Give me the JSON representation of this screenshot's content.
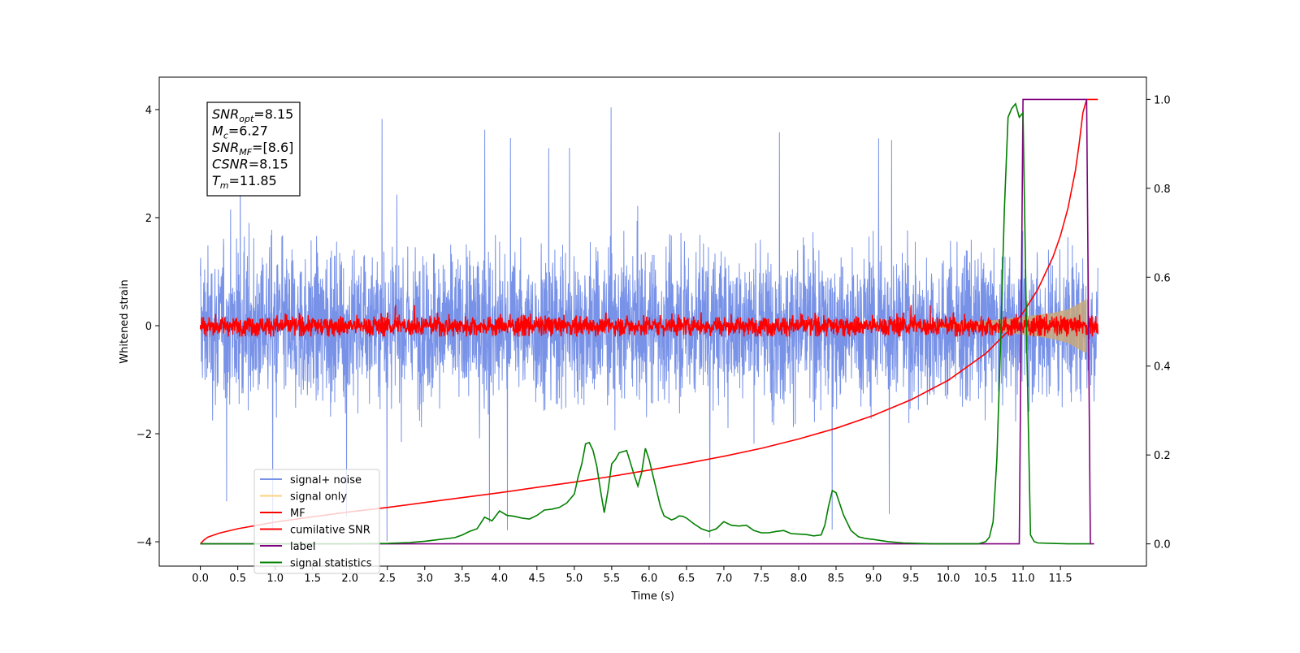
{
  "chart_data": {
    "type": "line",
    "title": "",
    "xlabel": "Time (s)",
    "ylabel": "Whitened strain",
    "xlim": [
      -0.55,
      12.65
    ],
    "ylim": [
      -4.45,
      4.6
    ],
    "y2lim": [
      -0.05,
      1.05
    ],
    "xticks": [
      "0.0",
      "0.5",
      "1.0",
      "1.5",
      "2.0",
      "2.5",
      "3.0",
      "3.5",
      "4.0",
      "4.5",
      "5.0",
      "5.5",
      "6.0",
      "6.5",
      "7.0",
      "7.5",
      "8.0",
      "8.5",
      "9.0",
      "9.5",
      "10.0",
      "10.5",
      "11.0",
      "11.5"
    ],
    "yticks": [
      "4",
      "2",
      "0",
      "−2",
      "−4"
    ],
    "y2ticks": [
      "1.0",
      "0.8",
      "0.6",
      "0.4",
      "0.2",
      "0.0"
    ],
    "grid": false,
    "legend_position": "lower-left",
    "annotation": {
      "lines": [
        {
          "base": "SNR",
          "sub": "opt",
          "value": "=8.15"
        },
        {
          "base": "M",
          "sub": "c",
          "value": "=6.27"
        },
        {
          "base": "SNR",
          "sub": "MF",
          "value": "=[8.6]"
        },
        {
          "base": "CSNR",
          "sub": "",
          "value": "=8.15"
        },
        {
          "base": "T",
          "sub": "m",
          "value": "=11.85"
        }
      ]
    },
    "series": [
      {
        "name": "signal+ noise",
        "axis": "left",
        "color": "#7892e8",
        "style": "noise",
        "x_range": [
          0.0,
          12.0
        ],
        "mean": 0.0,
        "spread": 1.3,
        "peak_range": [
          -4.0,
          4.1
        ]
      },
      {
        "name": "signal only",
        "axis": "left",
        "color": "#c8a87a",
        "style": "chirp-envelope",
        "x": [
          9.5,
          10.0,
          10.5,
          10.8,
          11.0,
          11.2,
          11.4,
          11.6,
          11.8,
          11.85
        ],
        "upper": [
          0.02,
          0.05,
          0.09,
          0.13,
          0.17,
          0.2,
          0.24,
          0.3,
          0.45,
          0.5
        ],
        "lower": [
          -0.02,
          -0.05,
          -0.09,
          -0.13,
          -0.17,
          -0.2,
          -0.25,
          -0.32,
          -0.48,
          -0.5
        ]
      },
      {
        "name": "MF",
        "axis": "left",
        "color": "#ff0000",
        "style": "noise",
        "x_range": [
          0.0,
          12.0
        ],
        "mean": 0.0,
        "spread": 0.18,
        "peak_range": [
          -0.2,
          0.45
        ]
      },
      {
        "name": "cumilative SNR",
        "axis": "right",
        "color": "#ff0000",
        "style": "line",
        "x": [
          0.0,
          0.05,
          0.1,
          0.25,
          0.5,
          1.0,
          1.5,
          2.0,
          2.5,
          3.0,
          3.5,
          4.0,
          4.5,
          5.0,
          5.5,
          6.0,
          6.5,
          7.0,
          7.5,
          8.0,
          8.5,
          9.0,
          9.5,
          10.0,
          10.5,
          10.8,
          11.0,
          11.2,
          11.4,
          11.5,
          11.6,
          11.7,
          11.75,
          11.8,
          11.85,
          12.0
        ],
        "y": [
          0.0,
          0.009,
          0.015,
          0.024,
          0.034,
          0.049,
          0.061,
          0.072,
          0.082,
          0.093,
          0.104,
          0.115,
          0.127,
          0.139,
          0.152,
          0.166,
          0.181,
          0.197,
          0.215,
          0.236,
          0.26,
          0.289,
          0.324,
          0.368,
          0.428,
          0.478,
          0.52,
          0.573,
          0.645,
          0.693,
          0.755,
          0.84,
          0.9,
          0.97,
          1.0,
          1.0
        ]
      },
      {
        "name": "label",
        "axis": "right",
        "color": "#800080",
        "style": "line",
        "x": [
          0.0,
          10.95,
          11.0,
          11.85,
          11.9,
          11.95
        ],
        "y": [
          0.0,
          0.0,
          1.0,
          1.0,
          0.0,
          0.0
        ]
      },
      {
        "name": "signal statistics",
        "axis": "right",
        "color": "#008000",
        "style": "line",
        "x": [
          0.0,
          0.5,
          1.0,
          1.5,
          2.0,
          2.5,
          2.8,
          3.0,
          3.2,
          3.4,
          3.5,
          3.6,
          3.7,
          3.8,
          3.9,
          4.0,
          4.1,
          4.2,
          4.3,
          4.4,
          4.5,
          4.6,
          4.7,
          4.8,
          4.9,
          5.0,
          5.05,
          5.1,
          5.15,
          5.2,
          5.25,
          5.3,
          5.35,
          5.4,
          5.45,
          5.5,
          5.55,
          5.6,
          5.7,
          5.8,
          5.85,
          5.9,
          5.95,
          6.0,
          6.05,
          6.1,
          6.15,
          6.2,
          6.3,
          6.35,
          6.4,
          6.45,
          6.5,
          6.6,
          6.7,
          6.8,
          6.9,
          7.0,
          7.1,
          7.2,
          7.3,
          7.4,
          7.5,
          7.6,
          7.7,
          7.8,
          7.9,
          8.0,
          8.1,
          8.2,
          8.3,
          8.35,
          8.4,
          8.45,
          8.5,
          8.6,
          8.7,
          8.8,
          8.9,
          9.0,
          9.2,
          9.4,
          9.6,
          9.8,
          10.0,
          10.2,
          10.4,
          10.5,
          10.55,
          10.6,
          10.65,
          10.7,
          10.75,
          10.8,
          10.85,
          10.9,
          10.95,
          11.0,
          11.05,
          11.1,
          11.15,
          11.2,
          11.4,
          11.6,
          11.8,
          11.9
        ],
        "y": [
          0.0,
          0.0,
          0.0,
          0.0,
          0.0,
          0.001,
          0.003,
          0.006,
          0.01,
          0.014,
          0.02,
          0.028,
          0.034,
          0.06,
          0.052,
          0.074,
          0.064,
          0.062,
          0.058,
          0.056,
          0.064,
          0.076,
          0.078,
          0.082,
          0.092,
          0.112,
          0.15,
          0.18,
          0.225,
          0.228,
          0.21,
          0.175,
          0.12,
          0.07,
          0.12,
          0.18,
          0.19,
          0.205,
          0.21,
          0.155,
          0.13,
          0.16,
          0.215,
          0.19,
          0.155,
          0.12,
          0.085,
          0.063,
          0.054,
          0.057,
          0.063,
          0.062,
          0.058,
          0.045,
          0.034,
          0.028,
          0.034,
          0.05,
          0.042,
          0.04,
          0.042,
          0.03,
          0.025,
          0.025,
          0.028,
          0.03,
          0.023,
          0.022,
          0.021,
          0.018,
          0.02,
          0.042,
          0.085,
          0.12,
          0.115,
          0.065,
          0.03,
          0.016,
          0.012,
          0.01,
          0.005,
          0.002,
          0.001,
          0.0,
          0.0,
          0.0,
          0.0,
          0.005,
          0.015,
          0.05,
          0.19,
          0.45,
          0.75,
          0.96,
          0.98,
          0.99,
          0.96,
          0.97,
          0.45,
          0.02,
          0.005,
          0.002,
          0.001,
          0.0,
          0.0,
          0.0
        ]
      }
    ]
  }
}
